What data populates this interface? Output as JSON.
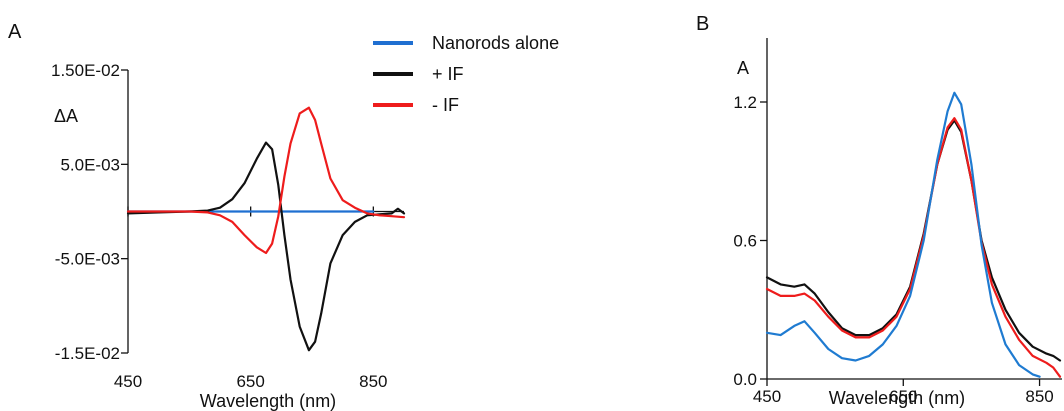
{
  "chart_data": [
    {
      "type": "line",
      "panel_label": "A",
      "xlabel": "Wavelength (nm)",
      "ylabel": "ΔA",
      "xlim": [
        450,
        900
      ],
      "ylim": [
        -0.015,
        0.015
      ],
      "x_ticks": [
        450,
        650,
        850
      ],
      "x_tick_labels": [
        "450",
        "650",
        "850"
      ],
      "y_ticks": [
        -0.015,
        -0.005,
        0.005,
        0.015
      ],
      "y_tick_labels": [
        "-1.5E-02",
        "-5.0E-03",
        "5.0E-03",
        "1.50E-02"
      ],
      "legend_placement": "top-right",
      "grid": false,
      "series": [
        {
          "name": "Nanorods alone",
          "color": "#1f6fd1",
          "x": [
            450,
            500,
            550,
            600,
            650,
            700,
            750,
            800,
            850
          ],
          "y": [
            0.0,
            0.0,
            0.0,
            0.0,
            0.0,
            0.0,
            0.0,
            0.0,
            0.0
          ]
        },
        {
          "name": "+ IF",
          "color": "#111111",
          "x": [
            450,
            500,
            550,
            580,
            600,
            620,
            640,
            660,
            675,
            685,
            695,
            705,
            715,
            730,
            745,
            755,
            765,
            780,
            800,
            820,
            840,
            860,
            880,
            890,
            900
          ],
          "y": [
            -0.0002,
            -0.0001,
            0.0,
            0.0001,
            0.0004,
            0.0013,
            0.003,
            0.0056,
            0.0073,
            0.0066,
            0.0028,
            -0.0025,
            -0.0072,
            -0.0122,
            -0.0147,
            -0.0138,
            -0.0108,
            -0.0055,
            -0.0025,
            -0.0011,
            -0.0004,
            -0.0003,
            -0.0002,
            0.0003,
            -0.0002
          ]
        },
        {
          "name": "- IF",
          "color": "#ee1c1c",
          "x": [
            450,
            500,
            550,
            580,
            600,
            620,
            640,
            660,
            675,
            685,
            695,
            705,
            715,
            730,
            745,
            755,
            765,
            780,
            800,
            820,
            840,
            860,
            880,
            900
          ],
          "y": [
            0.0,
            0.0,
            0.0,
            -0.0001,
            -0.0004,
            -0.0011,
            -0.0025,
            -0.0038,
            -0.0044,
            -0.0034,
            -0.0005,
            0.0037,
            0.0072,
            0.0104,
            0.011,
            0.0097,
            0.0072,
            0.0035,
            0.0012,
            0.0004,
            -0.0002,
            -0.0004,
            -0.0005,
            -0.0006
          ]
        }
      ]
    },
    {
      "type": "line",
      "panel_label": "B",
      "xlabel": "Wavelength (nm)",
      "ylabel": "A",
      "xlim": [
        450,
        880
      ],
      "ylim": [
        0.0,
        1.55
      ],
      "x_ticks": [
        450,
        650,
        850
      ],
      "x_tick_labels": [
        "450",
        "650",
        "850"
      ],
      "y_ticks": [
        0.0,
        0.6,
        1.2
      ],
      "y_tick_labels": [
        "0.0",
        "0.6",
        "1.2"
      ],
      "grid": false,
      "series": [
        {
          "color": "#111111",
          "x": [
            450,
            470,
            490,
            505,
            520,
            540,
            560,
            580,
            600,
            620,
            640,
            660,
            680,
            700,
            715,
            725,
            735,
            750,
            765,
            780,
            800,
            820,
            840,
            860,
            870,
            880
          ],
          "y": [
            0.44,
            0.41,
            0.4,
            0.41,
            0.37,
            0.29,
            0.22,
            0.19,
            0.19,
            0.22,
            0.28,
            0.4,
            0.63,
            0.93,
            1.08,
            1.12,
            1.07,
            0.86,
            0.6,
            0.44,
            0.3,
            0.2,
            0.14,
            0.11,
            0.1,
            0.08
          ]
        },
        {
          "color": "#ee1c1c",
          "x": [
            450,
            470,
            490,
            505,
            520,
            540,
            560,
            580,
            600,
            620,
            640,
            660,
            680,
            700,
            715,
            725,
            735,
            750,
            765,
            780,
            800,
            820,
            840,
            860,
            870,
            880
          ],
          "y": [
            0.39,
            0.36,
            0.36,
            0.37,
            0.34,
            0.27,
            0.21,
            0.18,
            0.18,
            0.21,
            0.27,
            0.39,
            0.62,
            0.93,
            1.09,
            1.13,
            1.08,
            0.86,
            0.59,
            0.41,
            0.27,
            0.17,
            0.1,
            0.07,
            0.05,
            0.01
          ]
        },
        {
          "color": "#1f7bd1",
          "x": [
            450,
            470,
            490,
            505,
            520,
            540,
            560,
            580,
            600,
            620,
            640,
            660,
            680,
            700,
            715,
            725,
            735,
            750,
            765,
            780,
            800,
            820,
            840,
            850
          ],
          "y": [
            0.2,
            0.19,
            0.23,
            0.25,
            0.2,
            0.13,
            0.09,
            0.08,
            0.1,
            0.15,
            0.23,
            0.36,
            0.6,
            0.95,
            1.16,
            1.24,
            1.19,
            0.93,
            0.58,
            0.33,
            0.15,
            0.06,
            0.02,
            0.01
          ]
        }
      ]
    }
  ]
}
